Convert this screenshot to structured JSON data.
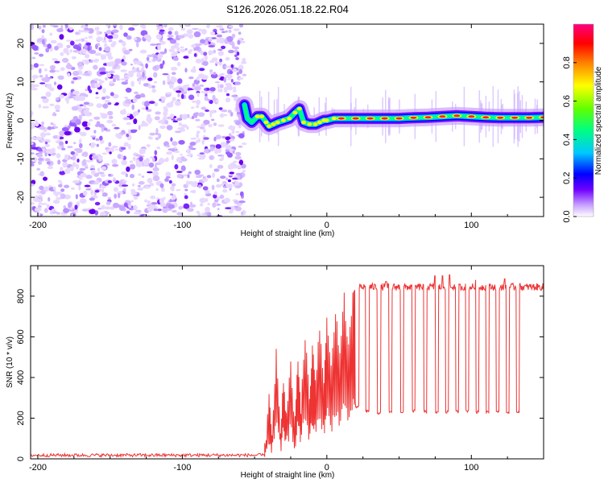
{
  "chart_data": [
    {
      "type": "heatmap",
      "title": "S126.2026.051.18.22.R04",
      "xlabel": "Height of straight line (km)",
      "ylabel": "Frequency (Hz)",
      "xlim": [
        -205,
        150
      ],
      "ylim": [
        -25,
        25
      ],
      "xticks": [
        -200,
        -100,
        0,
        100
      ],
      "yticks": [
        -20,
        -10,
        0,
        10,
        20
      ],
      "colorbar": {
        "label": "Normalized spectral amplitude",
        "range": [
          0,
          1
        ],
        "ticks": [
          0.0,
          0.2,
          0.4,
          0.6,
          0.8
        ],
        "tick_labels": [
          "0.0",
          "0.2",
          "0.4",
          "0.6",
          "0.8"
        ],
        "colors": [
          "#ffffff",
          "#c8a0ff",
          "#7000ff",
          "#0000ff",
          "#00c8ff",
          "#00ff80",
          "#60ff00",
          "#ffff00",
          "#ff8000",
          "#ff0000",
          "#ff0080"
        ]
      },
      "noise_region": {
        "x_range": [
          -205,
          -57
        ],
        "description": "broadband noise"
      },
      "signal_track": {
        "x": [
          -57,
          -55,
          -52,
          -48,
          -45,
          -42,
          -40,
          -37,
          -34,
          -30,
          -26,
          -22,
          -19,
          -16,
          -12,
          -8,
          -5,
          -2,
          0,
          5,
          10,
          20,
          30,
          40,
          50,
          60,
          70,
          80,
          90,
          100,
          110,
          120,
          130,
          140,
          150
        ],
        "y": [
          4,
          0.5,
          -0.5,
          1,
          1,
          -0.5,
          -1.5,
          -1,
          -0.5,
          0,
          0.5,
          2,
          3,
          -0.5,
          -1,
          -1,
          -0.5,
          0,
          0,
          0.5,
          0.5,
          0.5,
          0.5,
          0.5,
          0.5,
          0.7,
          0.8,
          1,
          1.2,
          1,
          0.8,
          0.7,
          0.7,
          0.7,
          0.8
        ]
      }
    },
    {
      "type": "line",
      "xlabel": "Height of straight line (km)",
      "ylabel": "SNR (10 * v/v)",
      "xlim": [
        -205,
        150
      ],
      "ylim": [
        0,
        950
      ],
      "xticks": [
        -200,
        -100,
        0,
        100
      ],
      "yticks": [
        0,
        200,
        400,
        600,
        800
      ],
      "series": [
        {
          "name": "SNR",
          "color": "#ee3333",
          "baseline": {
            "x_range": [
              -205,
              -43
            ],
            "value": 18,
            "noise": 8
          },
          "rising_section": {
            "x": [
              -43,
              -40,
              -38,
              -35,
              -32,
              -30,
              -28,
              -25,
              -22,
              -20,
              -18,
              -15,
              -12,
              -10,
              -8,
              -5,
              -2,
              0,
              3,
              6,
              9,
              12,
              15,
              18,
              20
            ],
            "y": [
              40,
              300,
              80,
              520,
              120,
              400,
              200,
              450,
              180,
              500,
              250,
              600,
              300,
              550,
              380,
              650,
              350,
              700,
              420,
              720,
              500,
              800,
              550,
              780,
              800
            ]
          },
          "plateau": {
            "x_range": [
              20,
              150
            ],
            "value": 845,
            "noise": 18
          },
          "dips": {
            "x": [
              20,
              27,
              35,
              43,
              51,
              59,
              67,
              75,
              82,
              89,
              96,
              103,
              110,
              117,
              124,
              131
            ],
            "y": [
              255,
              235,
              225,
              230,
              230,
              235,
              232,
              228,
              230,
              232,
              235,
              230,
              232,
              230,
              228,
              232
            ]
          },
          "peaks": {
            "x": [
              15,
              41,
              52,
              68,
              75,
              80,
              85,
              103,
              123
            ],
            "y": [
              860,
              872,
              880,
              880,
              900,
              900,
              905,
              880,
              885
            ]
          }
        }
      ]
    }
  ]
}
